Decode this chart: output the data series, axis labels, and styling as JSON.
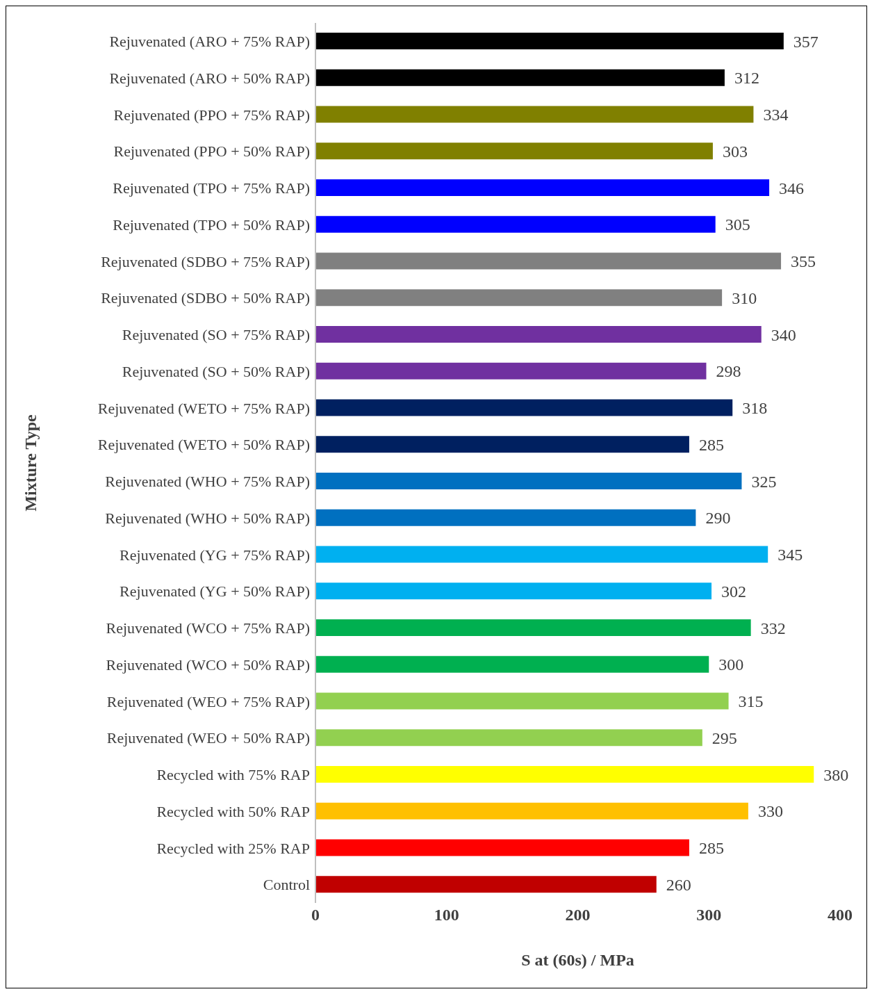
{
  "chart_data": {
    "type": "bar",
    "orientation": "horizontal",
    "xlabel": "S at (60s) / MPa",
    "ylabel": "Mixture Type",
    "categories": [
      "Rejuvenated (ARO + 75% RAP)",
      "Rejuvenated (ARO + 50% RAP)",
      "Rejuvenated (PPO + 75% RAP)",
      "Rejuvenated (PPO + 50% RAP)",
      "Rejuvenated (TPO + 75% RAP)",
      "Rejuvenated (TPO + 50% RAP)",
      "Rejuvenated (SDBO + 75% RAP)",
      "Rejuvenated (SDBO + 50% RAP)",
      "Rejuvenated (SO + 75% RAP)",
      "Rejuvenated (SO + 50% RAP)",
      "Rejuvenated (WETO + 75% RAP)",
      "Rejuvenated (WETO + 50% RAP)",
      "Rejuvenated (WHO + 75% RAP)",
      "Rejuvenated (WHO + 50% RAP)",
      "Rejuvenated (YG + 75% RAP)",
      "Rejuvenated (YG + 50% RAP)",
      "Rejuvenated (WCO + 75% RAP)",
      "Rejuvenated (WCO + 50% RAP)",
      "Rejuvenated (WEO + 75% RAP)",
      "Rejuvenated (WEO + 50% RAP)",
      "Recycled with 75% RAP",
      "Recycled with 50% RAP",
      "Recycled with  25% RAP",
      "Control"
    ],
    "values": [
      357,
      312,
      334,
      303,
      346,
      305,
      355,
      310,
      340,
      298,
      318,
      285,
      325,
      290,
      345,
      302,
      332,
      300,
      315,
      295,
      380,
      330,
      285,
      260
    ],
    "colors": [
      "#000000",
      "#000000",
      "#808000",
      "#808000",
      "#0000ff",
      "#0000ff",
      "#808080",
      "#808080",
      "#7030a0",
      "#7030a0",
      "#002060",
      "#002060",
      "#0070c0",
      "#0070c0",
      "#00b0f0",
      "#00b0f0",
      "#00b050",
      "#00b050",
      "#92d050",
      "#92d050",
      "#ffff00",
      "#ffc000",
      "#ff0000",
      "#c00000"
    ],
    "xlim": [
      0,
      400
    ],
    "xticks": [
      0,
      100,
      200,
      300,
      400
    ],
    "data_labels": true
  }
}
